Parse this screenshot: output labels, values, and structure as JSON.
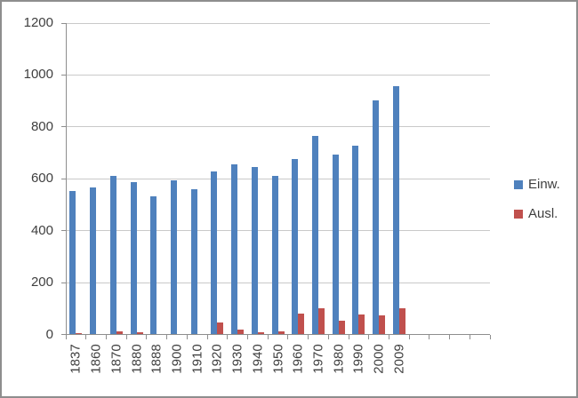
{
  "window": {
    "background": "#FFFFFF",
    "frame_color": "#8E8E8E"
  },
  "chart_data": {
    "type": "bar",
    "title": "",
    "xlabel": "",
    "ylabel": "",
    "categories": [
      "1837",
      "1860",
      "1870",
      "1880",
      "1888",
      "1900",
      "1910",
      "1920",
      "1930",
      "1940",
      "1950",
      "1960",
      "1970",
      "1980",
      "1990",
      "2000",
      "2009"
    ],
    "series": [
      {
        "name": "Einw.",
        "color": "#4F81BD",
        "values": [
          553,
          565,
          612,
          587,
          532,
          593,
          559,
          629,
          657,
          646,
          611,
          676,
          765,
          695,
          729,
          903,
          958
        ]
      },
      {
        "name": "Ausl.",
        "color": "#C0504D",
        "values": [
          6,
          0,
          12,
          9,
          0,
          0,
          0,
          45,
          20,
          8,
          12,
          82,
          102,
          54,
          76,
          73,
          100
        ]
      }
    ],
    "ylim": [
      0,
      1200
    ],
    "yticks": [
      0,
      200,
      400,
      600,
      800,
      1000,
      1200
    ],
    "grid": true,
    "gridline_color": "#C9C9C9",
    "axis_color": "#8E8E8E",
    "text_color": "#3F3F3F",
    "x_label_rotation": -90,
    "empty_trailing_slots": 4,
    "legend_position": "right"
  },
  "legend": {
    "items": [
      {
        "label": "Einw.",
        "color": "#4F81BD"
      },
      {
        "label": "Ausl.",
        "color": "#C0504D"
      }
    ]
  }
}
